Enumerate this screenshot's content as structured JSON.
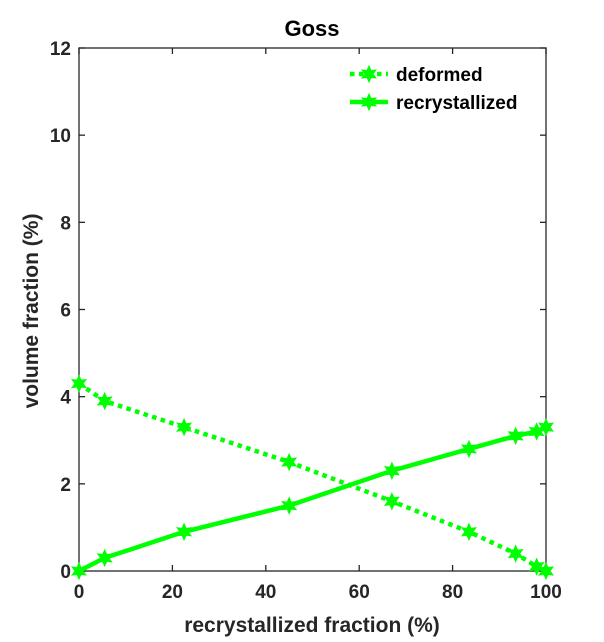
{
  "chart_data": {
    "type": "line",
    "title": "Goss",
    "xlabel": "recrystallized fraction (%)",
    "ylabel": "volume fraction (%)",
    "xlim": [
      0,
      100
    ],
    "ylim": [
      0,
      12
    ],
    "xticks": [
      0,
      20,
      40,
      60,
      80,
      100
    ],
    "yticks": [
      0,
      2,
      4,
      6,
      8,
      10,
      12
    ],
    "grid": false,
    "legend_position": "top-right",
    "series": [
      {
        "name": "deformed",
        "line_style": "dotted",
        "marker": "hexagram",
        "color": "#00ff00",
        "x": [
          0,
          5.5,
          22.5,
          45,
          67,
          83.5,
          93.5,
          98,
          100
        ],
        "y": [
          4.3,
          3.9,
          3.3,
          2.5,
          1.6,
          0.9,
          0.4,
          0.1,
          0
        ]
      },
      {
        "name": "recrystallized",
        "line_style": "solid",
        "marker": "hexagram",
        "color": "#00ff00",
        "x": [
          0,
          5.5,
          22.5,
          45,
          67,
          83.5,
          93.5,
          98,
          100
        ],
        "y": [
          0,
          0.3,
          0.9,
          1.5,
          2.3,
          2.8,
          3.1,
          3.2,
          3.3
        ]
      }
    ]
  }
}
